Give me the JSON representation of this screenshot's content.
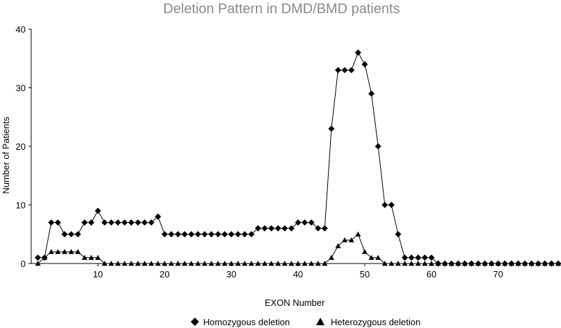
{
  "chart_data": {
    "type": "line",
    "title": "Deletion Pattern in DMD/BMD patients",
    "xlabel": "EXON Number",
    "ylabel": "Number of Patients",
    "xlim": [
      0,
      79
    ],
    "ylim": [
      0,
      40
    ],
    "xticks": [
      10,
      20,
      30,
      40,
      50,
      60,
      70
    ],
    "yticks": [
      0,
      10,
      20,
      30,
      40
    ],
    "grid": false,
    "legend_position": "bottom",
    "x": [
      1,
      2,
      3,
      4,
      5,
      6,
      7,
      8,
      9,
      10,
      11,
      12,
      13,
      14,
      15,
      16,
      17,
      18,
      19,
      20,
      21,
      22,
      23,
      24,
      25,
      26,
      27,
      28,
      29,
      30,
      31,
      32,
      33,
      34,
      35,
      36,
      37,
      38,
      39,
      40,
      41,
      42,
      43,
      44,
      45,
      46,
      47,
      48,
      49,
      50,
      51,
      52,
      53,
      54,
      55,
      56,
      57,
      58,
      59,
      60,
      61,
      62,
      63,
      64,
      65,
      66,
      67,
      68,
      69,
      70,
      71,
      72,
      73,
      74,
      75,
      76,
      77,
      78,
      79
    ],
    "series": [
      {
        "name": "Homozygous deletion",
        "marker": "diamond",
        "color": "#000000",
        "values": [
          1,
          1,
          7,
          7,
          5,
          5,
          5,
          7,
          7,
          9,
          7,
          7,
          7,
          7,
          7,
          7,
          7,
          7,
          8,
          5,
          5,
          5,
          5,
          5,
          5,
          5,
          5,
          5,
          5,
          5,
          5,
          5,
          5,
          6,
          6,
          6,
          6,
          6,
          6,
          7,
          7,
          7,
          6,
          6,
          23,
          33,
          33,
          33,
          36,
          34,
          29,
          20,
          10,
          10,
          5,
          1,
          1,
          1,
          1,
          1,
          0,
          0,
          0,
          0,
          0,
          0,
          0,
          0,
          0,
          0,
          0,
          0,
          0,
          0,
          0,
          0,
          0,
          0,
          0
        ]
      },
      {
        "name": "Heterozygous deletion",
        "marker": "triangle",
        "color": "#000000",
        "values": [
          0,
          1,
          2,
          2,
          2,
          2,
          2,
          1,
          1,
          1,
          0,
          0,
          0,
          0,
          0,
          0,
          0,
          0,
          0,
          0,
          0,
          0,
          0,
          0,
          0,
          0,
          0,
          0,
          0,
          0,
          0,
          0,
          0,
          0,
          0,
          0,
          0,
          0,
          0,
          0,
          0,
          0,
          0,
          0,
          1,
          3,
          4,
          4,
          5,
          2,
          1,
          1,
          0,
          0,
          0,
          0,
          0,
          0,
          0,
          0,
          0,
          0,
          0,
          0,
          0,
          0,
          0,
          0,
          0,
          0,
          0,
          0,
          0,
          0,
          0,
          0,
          0,
          0,
          0
        ]
      }
    ]
  }
}
